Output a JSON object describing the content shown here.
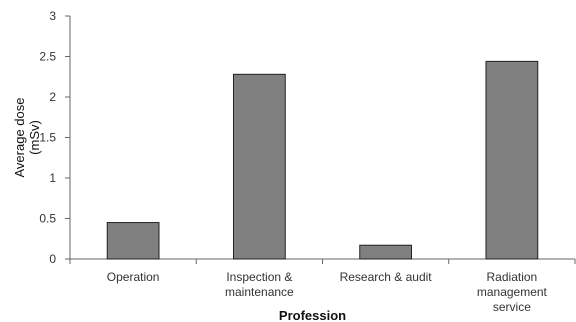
{
  "chart_data": {
    "type": "bar",
    "categories": [
      [
        "Operation"
      ],
      [
        "Inspection &",
        "maintenance"
      ],
      [
        "Research & audit"
      ],
      [
        "Radiation",
        "management",
        "service"
      ]
    ],
    "values": [
      0.45,
      2.28,
      0.17,
      2.44
    ],
    "xlabel": "Profession",
    "ylabel": [
      "Average dose",
      "(mSv)"
    ],
    "ylim": [
      0,
      3
    ],
    "yticks": [
      "0",
      "0.5",
      "1",
      "1.5",
      "2",
      "2.5",
      "3"
    ],
    "grid": false,
    "legend": "none",
    "bar_color": "#808080",
    "bar_edge_color": "#222222"
  }
}
